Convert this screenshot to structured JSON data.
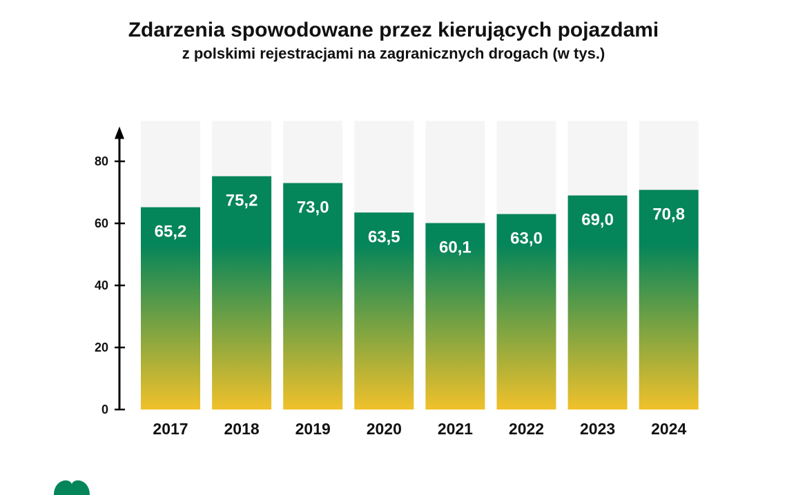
{
  "colors": {
    "track": "#f5f5f5",
    "top": "#05855a",
    "bottom": "#f0c12b",
    "axis": "#000000"
  },
  "chart_data": {
    "type": "bar",
    "title": "Zdarzenia spowodowane przez kierujących pojazdami",
    "subtitle": "z polskimi rejestracjami na zagranicznych drogach (w tys.)",
    "categories": [
      "2017",
      "2018",
      "2019",
      "2020",
      "2021",
      "2022",
      "2023",
      "2024"
    ],
    "values": [
      65.2,
      75.2,
      73.0,
      63.5,
      60.1,
      63.0,
      69.0,
      70.8
    ],
    "value_labels": [
      "65,2",
      "75,2",
      "73,0",
      "63,5",
      "60,1",
      "63,0",
      "69,0",
      "70,8"
    ],
    "yticks": [
      0,
      20,
      40,
      60,
      80
    ],
    "ylim": [
      0,
      93
    ],
    "grid": false,
    "legend": "none"
  }
}
